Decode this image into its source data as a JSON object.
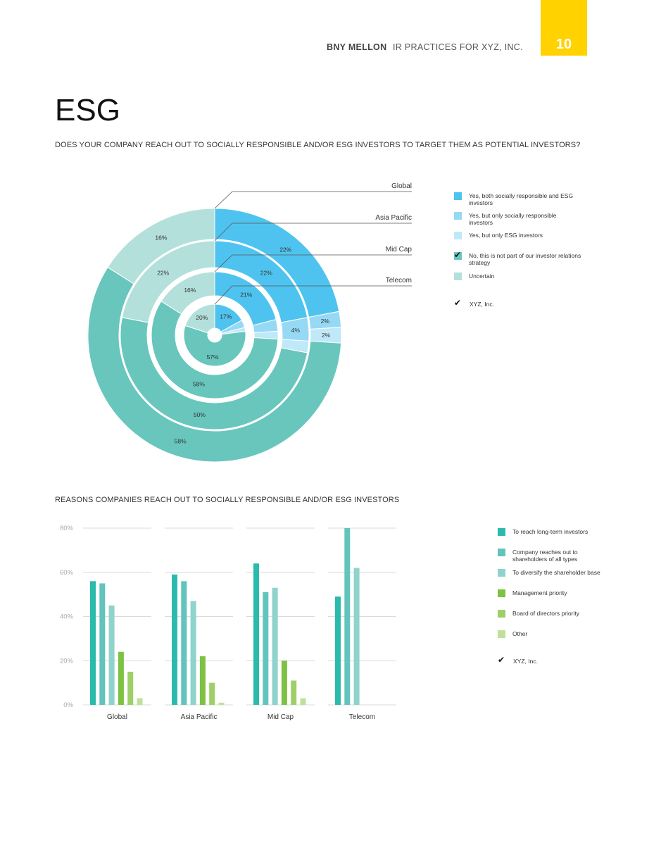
{
  "header": {
    "brand": "BNY MELLON",
    "doc_title": "IR PRACTICES FOR XYZ, INC.",
    "page_number": "10",
    "accent": "#FFD200"
  },
  "section_title": "ESG",
  "chart_data": [
    {
      "type": "pie",
      "variant": "nested-donut",
      "title": "DOES YOUR COMPANY REACH OUT TO SOCIALLY RESPONSIBLE AND/OR ESG INVESTORS TO TARGET THEM AS POTENTIAL INVESTORS?",
      "categories": [
        "Yes, both socially responsible and ESG investors",
        "Yes, but only socially responsible investors",
        "Yes, but only ESG investors",
        "No, this is not part of our investor relations strategy",
        "Uncertain"
      ],
      "colors": [
        "#4FC3EF",
        "#96D9F4",
        "#BFE8F8",
        "#68C6BD",
        "#B3E0DB"
      ],
      "xyz_marked_category": "No, this is not part of our investor relations strategy",
      "xyz_label": "XYZ, Inc.",
      "check_icon": "check-icon",
      "series": [
        {
          "name": "Global",
          "values": [
            22,
            2,
            2,
            58,
            16
          ],
          "labels": [
            "22%",
            "2%",
            "2%",
            "58%",
            "16%"
          ]
        },
        {
          "name": "Asia Pacific",
          "values": [
            22,
            4,
            2,
            50,
            22
          ],
          "labels": [
            "22%",
            "4%",
            "",
            "50%",
            "22%"
          ]
        },
        {
          "name": "Mid Cap",
          "values": [
            21,
            3,
            2,
            58,
            16
          ],
          "labels": [
            "21%",
            "",
            "",
            "58%",
            "16%"
          ]
        },
        {
          "name": "Telecom",
          "values": [
            17,
            4,
            2,
            57,
            20
          ],
          "labels": [
            "17%",
            "",
            "",
            "57%",
            "20%"
          ]
        }
      ]
    },
    {
      "type": "bar",
      "title": "REASONS COMPANIES REACH OUT TO SOCIALLY RESPONSIBLE AND/OR ESG INVESTORS",
      "categories": [
        "Global",
        "Asia Pacific",
        "Mid Cap",
        "Telecom"
      ],
      "ylim": [
        0,
        80
      ],
      "yticks": [
        "0%",
        "20%",
        "40%",
        "60%",
        "80%"
      ],
      "grid": true,
      "legend_position": "right",
      "xyz_label": "XYZ, Inc.",
      "check_icon": "check-icon",
      "series": [
        {
          "name": "To reach long-term investors",
          "color": "#2BBBAD",
          "values": [
            56,
            59,
            64,
            49
          ]
        },
        {
          "name": "Company reaches out to shareholders of all types",
          "color": "#62C4BC",
          "values": [
            55,
            56,
            51,
            80
          ]
        },
        {
          "name": "To diversify the shareholder base",
          "color": "#8FD3CC",
          "values": [
            45,
            47,
            53,
            62
          ]
        },
        {
          "name": "Management priority",
          "color": "#7DC242",
          "values": [
            24,
            22,
            20,
            0
          ]
        },
        {
          "name": "Board of directors priority",
          "color": "#9FD068",
          "values": [
            15,
            10,
            11,
            0
          ]
        },
        {
          "name": "Other",
          "color": "#BFE09A",
          "values": [
            3,
            1,
            3,
            0
          ]
        }
      ]
    }
  ]
}
